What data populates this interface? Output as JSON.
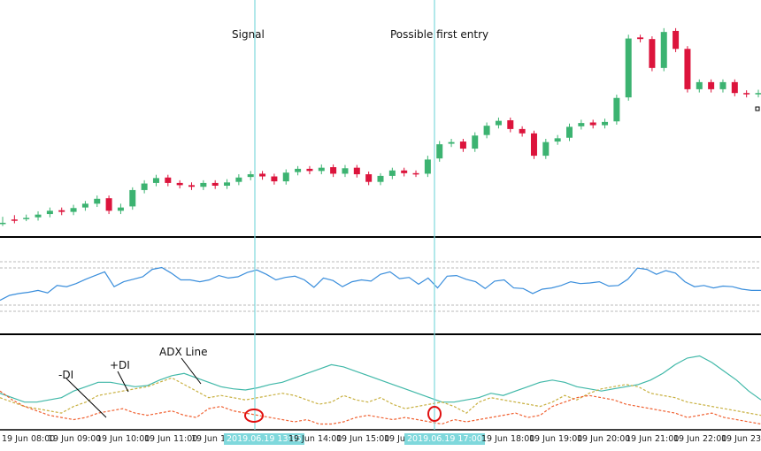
{
  "annotations": {
    "signal": "Signal",
    "possible_entry": "Possible first entry",
    "adx_line": "ADX Line",
    "plus_di": "+DI",
    "minus_di": "-DI"
  },
  "time_axis": {
    "labels": [
      "19 Jun 08:00",
      "19 Jun 09:00",
      "19 Jun 10:00",
      "19 Jun 11:00",
      "19 Jun 12",
      "19 Jun 14:00",
      "19 Jun 15:00",
      "19 Jun 16",
      "19 Jun 18:00",
      "19 Jun 19:00",
      "19 Jun 20:00",
      "19 Jun 21:00",
      "19 Jun 22:00",
      "19 Jun 23:00"
    ],
    "highlight_labels": [
      "2019.06.19 13:15",
      "2019.06.19 17:00"
    ]
  },
  "colors": {
    "bull": "#3cb371",
    "bear": "#dc143c",
    "cyan_line": "#7fd8dc",
    "adx": "#40b8a8",
    "plus_di": "#c8b040",
    "minus_di": "#f06030",
    "oscillator": "#3a8edc",
    "circle": "#e01010"
  },
  "chart_data": [
    {
      "type": "candlestick",
      "series": [
        {
          "values": [
            [
              0,
              0.0,
              0.6
            ],
            [
              0.6,
              0.5,
              0.9
            ],
            [
              0.9,
              0.9,
              1.0
            ],
            [
              1.0,
              1.5,
              1.6
            ],
            [
              1.6,
              2.2,
              2.3
            ],
            [
              2.3,
              2.0,
              2.0
            ],
            [
              2.0,
              2.7,
              2.8
            ],
            [
              2.8,
              3.5,
              3.5
            ],
            [
              3.5,
              4.4,
              4.5
            ],
            [
              4.5,
              2.2,
              2.2
            ],
            [
              2.2,
              2.8,
              3.0
            ],
            [
              3.0,
              6.0,
              6.0
            ],
            [
              6.0,
              7.2,
              7.3
            ],
            [
              7.3,
              8.2,
              8.3
            ],
            [
              8.3,
              7.3,
              7.3
            ],
            [
              7.3,
              6.9,
              6.9
            ],
            [
              6.9,
              6.6,
              6.6
            ],
            [
              6.6,
              7.3,
              7.3
            ],
            [
              7.3,
              6.8,
              6.8
            ],
            [
              6.8,
              7.4,
              7.5
            ],
            [
              7.5,
              8.3,
              8.4
            ],
            [
              8.4,
              8.9,
              9.0
            ],
            [
              9.0,
              8.5,
              8.5
            ],
            [
              8.5,
              7.6,
              7.6
            ],
            [
              7.6,
              9.2,
              9.3
            ],
            [
              9.3,
              9.9,
              9.9
            ],
            [
              9.9,
              9.5,
              9.5
            ],
            [
              9.5,
              10.1,
              10.2
            ],
            [
              10.2,
              9.0,
              9.0
            ],
            [
              9.0,
              10.0,
              10.1
            ],
            [
              10.1,
              8.9,
              8.9
            ],
            [
              8.9,
              7.5,
              7.5
            ],
            [
              7.5,
              8.6,
              8.6
            ],
            [
              8.6,
              9.6,
              9.6
            ],
            [
              9.6,
              9.1,
              9.1
            ],
            [
              9.1,
              9.0,
              9.0
            ],
            [
              9.0,
              11.6,
              11.8
            ],
            [
              11.8,
              14.4,
              14.5
            ],
            [
              14.5,
              14.8,
              14.9
            ],
            [
              14.9,
              13.6,
              13.6
            ],
            [
              13.6,
              16.0,
              16.1
            ],
            [
              16.1,
              17.8,
              17.9
            ],
            [
              17.9,
              18.7,
              18.8
            ],
            [
              18.8,
              17.2,
              17.2
            ],
            [
              17.2,
              16.4,
              16.4
            ],
            [
              16.4,
              12.3,
              12.3
            ],
            [
              12.3,
              14.8,
              14.9
            ],
            [
              14.9,
              15.5,
              15.6
            ],
            [
              15.6,
              17.6,
              17.7
            ],
            [
              17.7,
              18.3,
              18.4
            ],
            [
              18.4,
              17.9,
              17.9
            ],
            [
              17.9,
              18.5,
              18.6
            ],
            [
              18.6,
              22.9,
              23.0
            ],
            [
              23.0,
              33.8,
              34.0
            ],
            [
              34.0,
              33.7,
              33.7
            ],
            [
              33.7,
              28.4,
              28.4
            ],
            [
              28.4,
              35.0,
              35.2
            ],
            [
              35.2,
              31.9,
              31.9
            ],
            [
              31.9,
              24.5,
              24.5
            ],
            [
              24.5,
              25.8,
              25.8
            ],
            [
              25.8,
              24.5,
              24.5
            ],
            [
              24.5,
              25.8,
              25.8
            ],
            [
              25.8,
              23.8,
              23.8
            ],
            [
              23.8,
              23.6,
              23.6
            ],
            [
              23.6,
              23.8,
              23.9
            ]
          ]
        }
      ]
    },
    {
      "type": "line",
      "series": [
        {
          "name": "oscillator",
          "values": [
            22,
            30,
            33,
            35,
            38,
            34,
            46,
            44,
            49,
            56,
            62,
            68,
            44,
            52,
            56,
            60,
            72,
            75,
            66,
            55,
            55,
            52,
            55,
            62,
            58,
            60,
            67,
            71,
            64,
            55,
            59,
            61,
            55,
            43,
            58,
            54,
            44,
            52,
            55,
            53,
            64,
            68,
            57,
            59,
            48,
            58,
            42,
            61,
            62,
            56,
            52,
            41,
            53,
            55,
            42,
            41,
            33,
            40,
            42,
            46,
            52,
            49,
            50,
            52,
            45,
            46,
            56,
            74,
            72,
            64,
            70,
            66,
            52,
            44,
            46,
            42,
            45,
            44,
            40,
            38,
            38
          ]
        }
      ]
    },
    {
      "type": "line",
      "series": [
        {
          "name": "ADX",
          "values": [
            30,
            26,
            22,
            22,
            24,
            26,
            32,
            36,
            40,
            40,
            38,
            36,
            37,
            42,
            46,
            48,
            44,
            40,
            36,
            34,
            33,
            35,
            38,
            40,
            44,
            48,
            52,
            56,
            54,
            50,
            46,
            42,
            38,
            34,
            30,
            26,
            22,
            22,
            24,
            26,
            30,
            28,
            32,
            36,
            40,
            42,
            40,
            36,
            34,
            32,
            34,
            36,
            38,
            42,
            48,
            56,
            62,
            64,
            58,
            50,
            42,
            32,
            24
          ]
        },
        {
          "name": "+DI",
          "values": [
            26,
            22,
            18,
            16,
            14,
            12,
            18,
            22,
            28,
            30,
            32,
            34,
            36,
            40,
            44,
            38,
            32,
            26,
            28,
            26,
            24,
            26,
            28,
            30,
            28,
            24,
            20,
            22,
            28,
            24,
            22,
            26,
            20,
            16,
            18,
            20,
            22,
            18,
            12,
            22,
            26,
            24,
            22,
            20,
            18,
            22,
            28,
            24,
            30,
            34,
            36,
            38,
            36,
            30,
            28,
            26,
            22,
            20,
            18,
            16,
            14,
            12,
            10
          ]
        },
        {
          "name": "-DI",
          "values": [
            32,
            24,
            18,
            14,
            10,
            8,
            6,
            8,
            12,
            14,
            16,
            12,
            10,
            12,
            14,
            10,
            8,
            16,
            18,
            14,
            12,
            10,
            8,
            6,
            4,
            6,
            2,
            2,
            4,
            8,
            10,
            8,
            6,
            8,
            6,
            4,
            2,
            6,
            4,
            6,
            8,
            10,
            12,
            8,
            10,
            18,
            22,
            26,
            28,
            26,
            24,
            20,
            18,
            16,
            14,
            12,
            8,
            10,
            12,
            8,
            6,
            4,
            2
          ]
        }
      ]
    }
  ]
}
